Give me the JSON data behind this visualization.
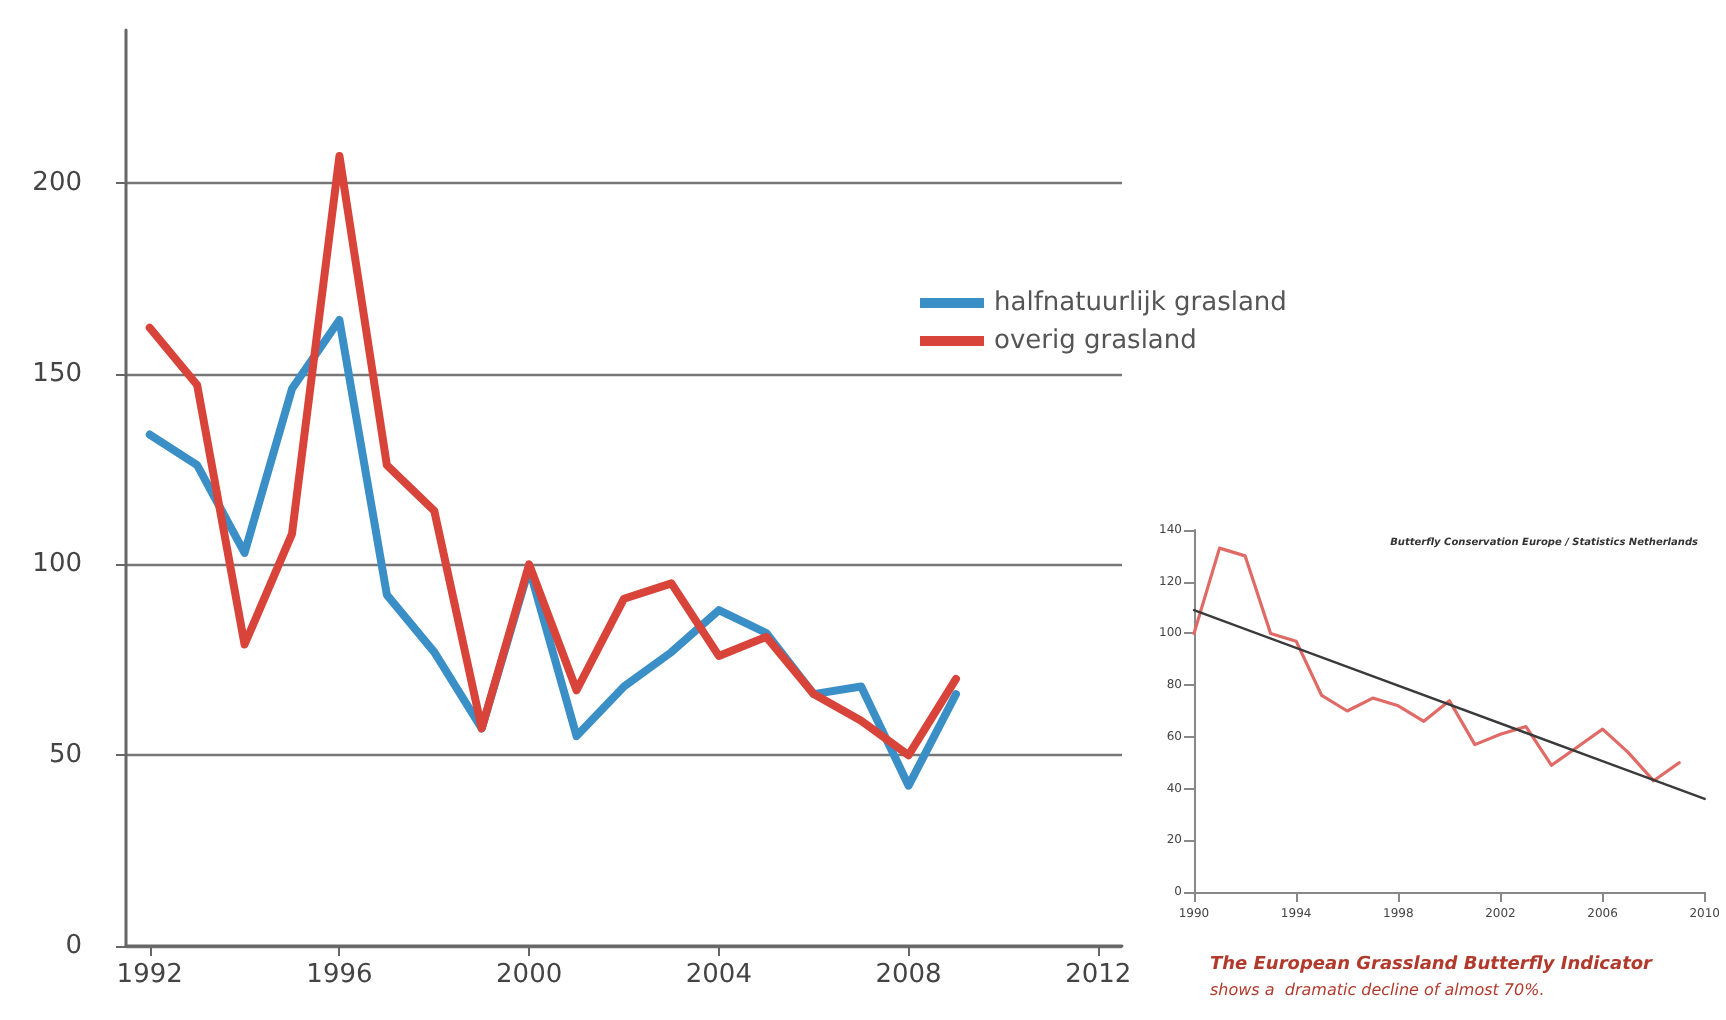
{
  "chart_data": [
    {
      "type": "line",
      "x": [
        1992,
        1993,
        1994,
        1995,
        1996,
        1997,
        1998,
        1999,
        2000,
        2001,
        2002,
        2003,
        2004,
        2005,
        2006,
        2007,
        2008,
        2009
      ],
      "series": [
        {
          "name": "halfnatuurlijk grasland",
          "color": "#3b8fc7",
          "values": [
            134,
            126,
            103,
            146,
            164,
            92,
            77,
            57,
            99,
            55,
            68,
            77,
            88,
            82,
            66,
            68,
            42,
            66
          ]
        },
        {
          "name": "overig grasland",
          "color": "#d8443a",
          "values": [
            162,
            147,
            79,
            108,
            207,
            126,
            114,
            57,
            100,
            67,
            91,
            95,
            76,
            81,
            66,
            59,
            50,
            70
          ]
        }
      ],
      "xlim": [
        1991.5,
        2012.5
      ],
      "xticks": [
        1992,
        1996,
        2000,
        2004,
        2008,
        2012
      ],
      "ylim": [
        0,
        240
      ],
      "yticks": [
        0,
        50,
        100,
        150,
        200
      ],
      "grid": "y",
      "legend": "top right",
      "marker": "none",
      "line_style": "solid"
    },
    {
      "type": "line",
      "title": "The European Grassland Butterfly Indicator",
      "subtitle": "shows a  dramatic decline of almost 70%.",
      "x": [
        1990,
        1991,
        1992,
        1993,
        1994,
        1995,
        1996,
        1997,
        1998,
        1999,
        2000,
        2001,
        2002,
        2003,
        2004,
        2005,
        2006,
        2007,
        2008,
        2009
      ],
      "series": [
        {
          "color": "#e06a66",
          "values": [
            100,
            133,
            130,
            100,
            97,
            76,
            70,
            75,
            72,
            66,
            74,
            57,
            61,
            64,
            49,
            56,
            63,
            54,
            43,
            50
          ]
        },
        {
          "type": "line",
          "color": "#3a3a3a",
          "x": [
            1990,
            2010
          ],
          "values": [
            109,
            36
          ]
        }
      ],
      "xlim": [
        1990,
        2010
      ],
      "xticks": [
        1990,
        1994,
        1998,
        2002,
        2006,
        2010
      ],
      "ylim": [
        0,
        140
      ],
      "yticks": [
        0,
        20,
        40,
        60,
        80,
        100,
        120,
        140
      ],
      "annotations": [
        "Butterfly Conservation Europe / Statistics Netherlands"
      ],
      "grid": false,
      "legend": false,
      "marker": "none",
      "line_style": "solid"
    }
  ]
}
